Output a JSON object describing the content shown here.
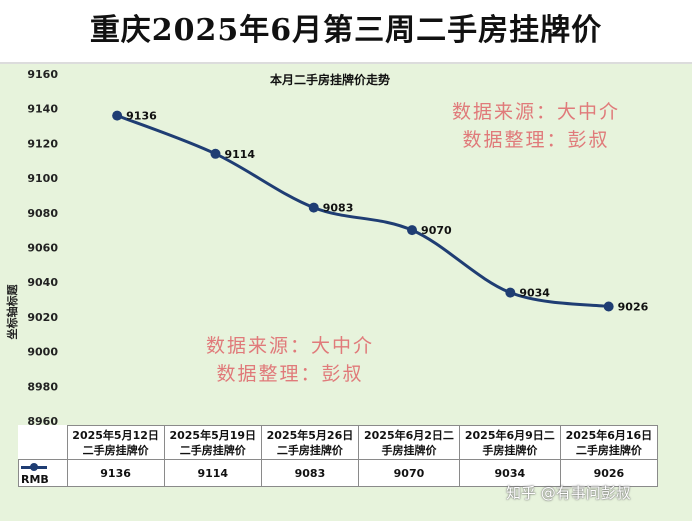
{
  "header": {
    "title": "重庆2025年6月第三周二手房挂牌价"
  },
  "watermarks": {
    "top": {
      "line1": "数据来源：大中介",
      "line2": "数据整理：彭叔"
    },
    "bottom": {
      "line1": "数据来源：大中介",
      "line2": "数据整理：彭叔"
    }
  },
  "credit": "知乎 @有事问彭叔",
  "colors": {
    "series": "#1f3d73",
    "plot_bg": "#e7f3dc",
    "watermark": "#e07a7a"
  },
  "chart_data": {
    "type": "line",
    "title": "本月二手房挂牌价走势",
    "ylabel": "坐标轴标题",
    "xlabel": "",
    "ylim": [
      8960,
      9160
    ],
    "yticks": [
      9160,
      9140,
      9120,
      9100,
      9080,
      9060,
      9040,
      9020,
      9000,
      8980,
      8960
    ],
    "categories": [
      "2025年5月12日二手房挂牌价",
      "2025年5月19日二手房挂牌价",
      "2025年5月26日二手房挂牌价",
      "2025年6月2日二手房挂牌价",
      "2025年6月9日二手房挂牌价",
      "2025年6月16日二手房挂牌价"
    ],
    "category_lines": [
      [
        "2025年5月12日",
        "二手房挂牌价"
      ],
      [
        "2025年5月19日",
        "二手房挂牌价"
      ],
      [
        "2025年5月26日",
        "二手房挂牌价"
      ],
      [
        "2025年6月2日二",
        "手房挂牌价"
      ],
      [
        "2025年6月9日二",
        "手房挂牌价"
      ],
      [
        "2025年6月16日",
        "二手房挂牌价"
      ]
    ],
    "series": [
      {
        "name": "RMB",
        "values": [
          9136,
          9114,
          9083,
          9070,
          9034,
          9026
        ]
      }
    ],
    "grid": false,
    "legend": "data-table"
  }
}
